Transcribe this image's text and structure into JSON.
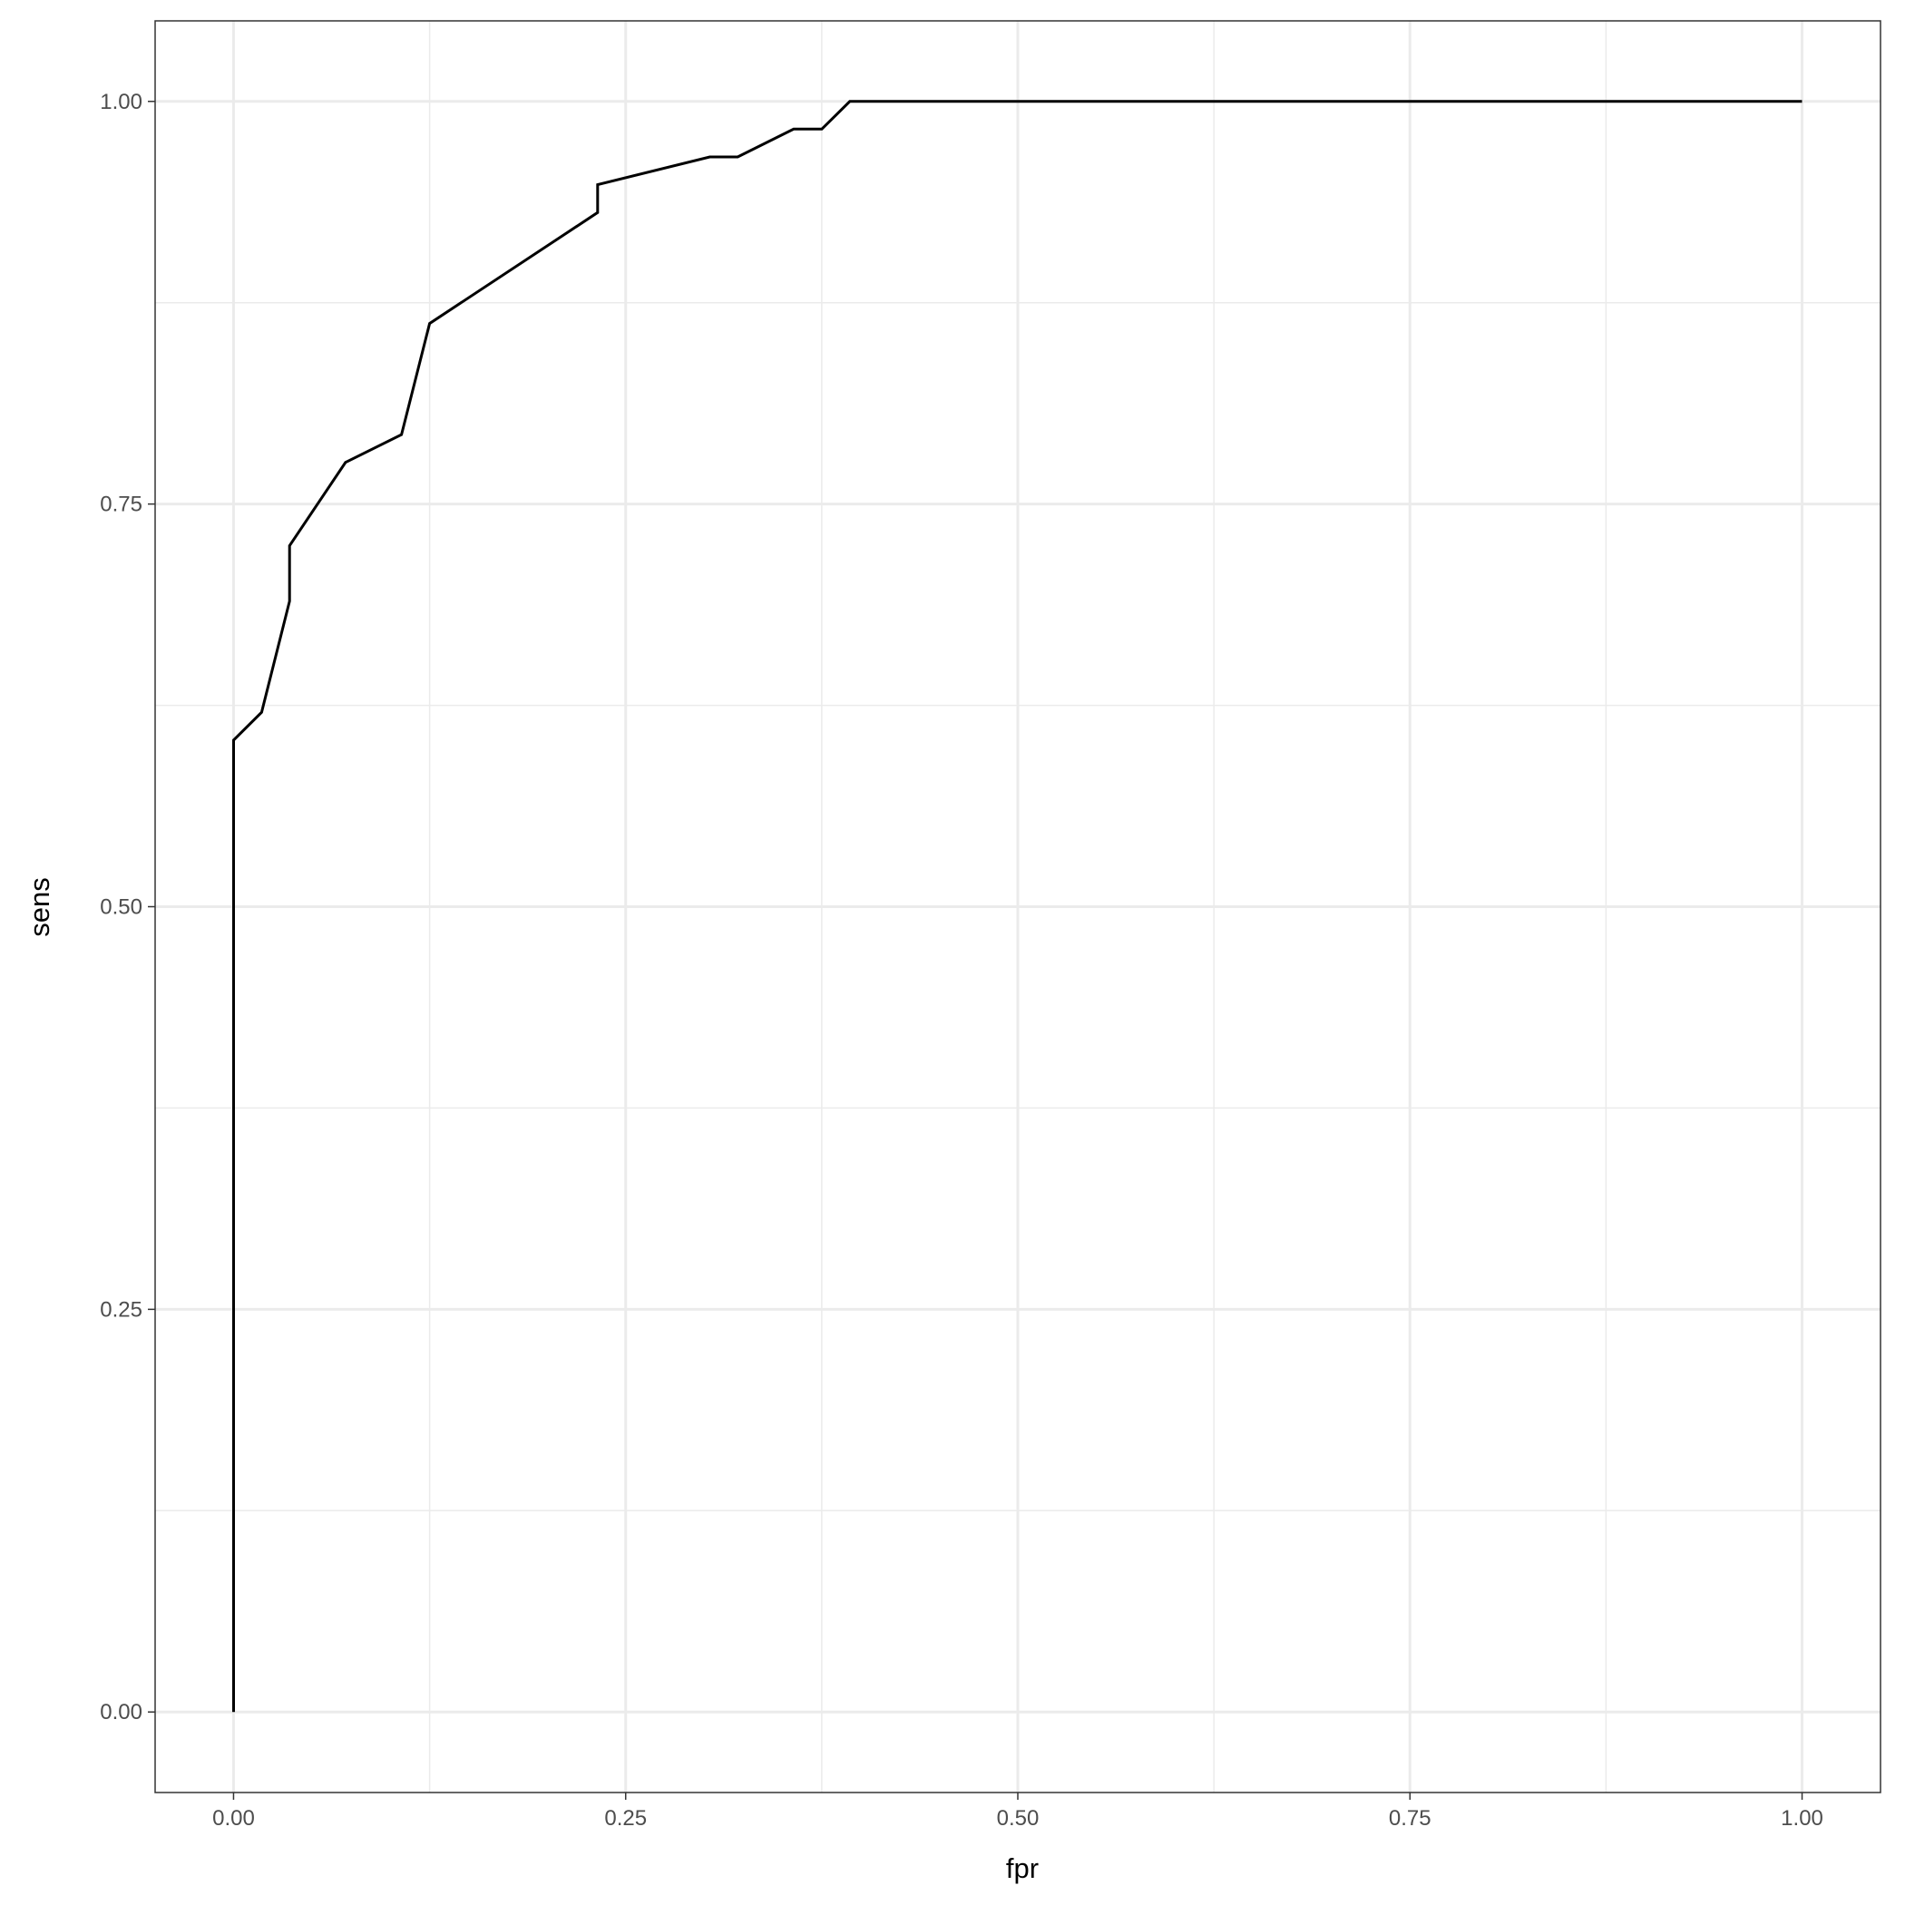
{
  "chart_data": {
    "type": "line",
    "title": "",
    "xlabel": "fpr",
    "ylabel": "sens",
    "xlim": [
      -0.05,
      1.05
    ],
    "ylim": [
      -0.05,
      1.05
    ],
    "grid": true,
    "line_color": "#000000",
    "xticks": [
      "0.00",
      "0.25",
      "0.50",
      "0.75",
      "1.00"
    ],
    "yticks": [
      "0.00",
      "0.25",
      "0.50",
      "0.75",
      "1.00"
    ],
    "x": [
      0,
      0,
      0.0179,
      0.0357,
      0.0357,
      0.0714,
      0.1071,
      0.125,
      0.2321,
      0.2321,
      0.3036,
      0.3214,
      0.3571,
      0.375,
      0.3929,
      1
    ],
    "y": [
      0,
      0.6034,
      0.6207,
      0.6897,
      0.7241,
      0.7759,
      0.7931,
      0.8621,
      0.931,
      0.9483,
      0.9655,
      0.9655,
      0.9828,
      0.9828,
      1,
      1
    ]
  }
}
